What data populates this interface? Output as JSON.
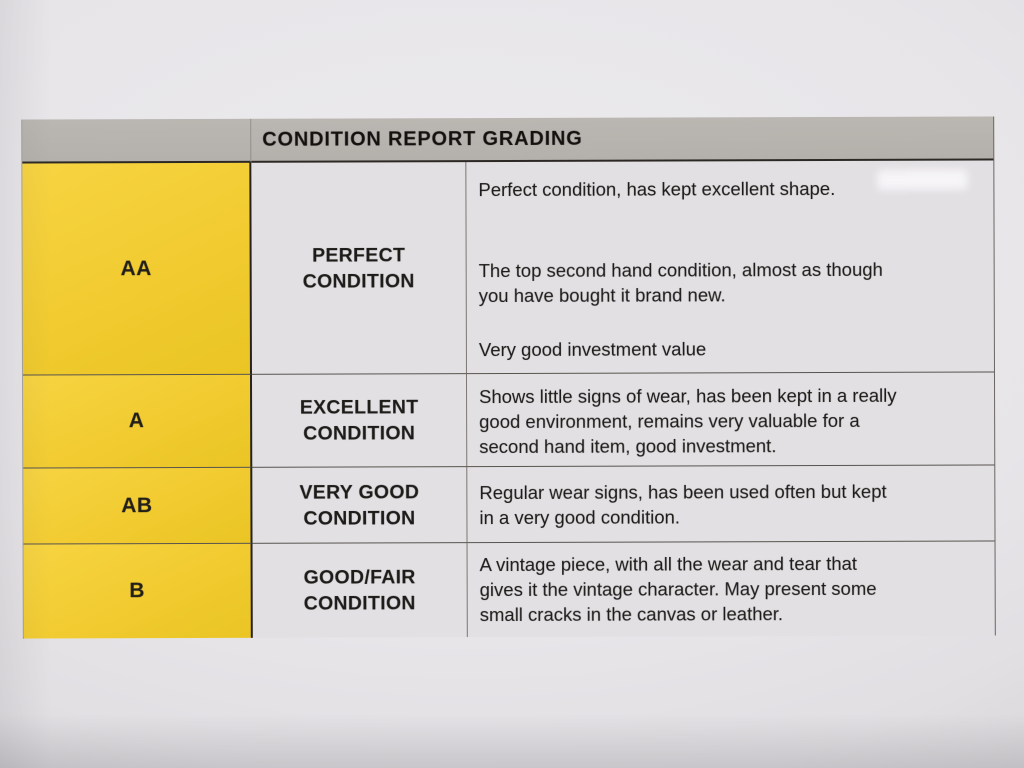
{
  "table": {
    "title": "CONDITION REPORT GRADING",
    "rows": [
      {
        "grade": "AA",
        "label_lines": [
          "PERFECT",
          "CONDITION"
        ],
        "paragraphs": [
          [
            "Perfect condition, has kept excellent shape."
          ],
          [
            "The top second hand condition, almost as though",
            "you have bought it brand new."
          ],
          [
            "Very good investment value"
          ]
        ]
      },
      {
        "grade": "A",
        "label_lines": [
          "EXCELLENT",
          "CONDITION"
        ],
        "paragraphs": [
          [
            "Shows little signs of wear, has been kept in a really",
            "good environment, remains very valuable for a",
            "second hand item, good investment."
          ]
        ]
      },
      {
        "grade": "AB",
        "label_lines": [
          "VERY GOOD",
          "CONDITION"
        ],
        "paragraphs": [
          [
            "Regular wear signs, has been used often but kept",
            "in a very good condition."
          ]
        ]
      },
      {
        "grade": "B",
        "label_lines": [
          "GOOD/FAIR",
          "CONDITION"
        ],
        "paragraphs": [
          [
            "A vintage piece, with all the wear and tear that",
            "gives it the vintage character. May present some",
            "small cracks in the canvas or leather."
          ]
        ]
      }
    ]
  },
  "colors": {
    "grade_column_yellow": "#f0ca2e",
    "header_bar_gray": "#b7b3ae",
    "cell_background": "#e2e0e3",
    "paper_background": "#e7e5e8",
    "text": "#1e1c19"
  }
}
